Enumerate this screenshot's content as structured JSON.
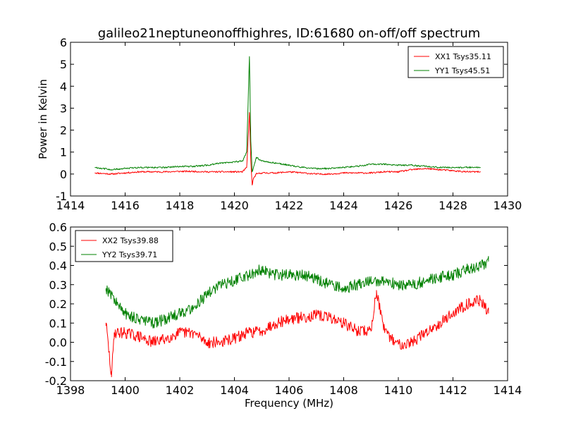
{
  "figure_title": "galileo21neptuneonoffhighres, ID:61680 on-off/off spectrum",
  "chart_data": [
    {
      "type": "line",
      "title": "galileo21neptuneonoffhighres, ID:61680 on-off/off spectrum",
      "xlabel": "",
      "ylabel": "Power in Kelvin",
      "xlim": [
        1414,
        1430
      ],
      "ylim": [
        -1,
        6
      ],
      "xticks": [
        1414,
        1416,
        1418,
        1420,
        1422,
        1424,
        1426,
        1428,
        1430
      ],
      "yticks": [
        -1,
        0,
        1,
        2,
        3,
        4,
        5,
        6
      ],
      "grid": false,
      "legend": "top-right",
      "series": [
        {
          "name": "XX1 Tsys35.11",
          "color": "#ff0000",
          "x": [
            1414.9,
            1415.5,
            1416.0,
            1416.5,
            1417.0,
            1417.5,
            1418.0,
            1418.5,
            1419.0,
            1419.5,
            1420.0,
            1420.3,
            1420.45,
            1420.55,
            1420.6,
            1420.65,
            1420.7,
            1420.8,
            1421.0,
            1421.5,
            1422.0,
            1422.5,
            1423.0,
            1423.5,
            1424.0,
            1424.5,
            1425.0,
            1425.5,
            1426.0,
            1426.5,
            1427.0,
            1427.5,
            1428.0,
            1428.5,
            1429.0
          ],
          "values": [
            0.05,
            0.0,
            0.05,
            0.1,
            0.1,
            0.1,
            0.12,
            0.12,
            0.1,
            0.1,
            0.1,
            0.1,
            0.3,
            2.8,
            0.6,
            -0.5,
            -0.2,
            0.0,
            0.05,
            0.05,
            0.1,
            0.05,
            0.0,
            0.0,
            0.05,
            0.05,
            0.05,
            0.1,
            0.1,
            0.2,
            0.25,
            0.2,
            0.15,
            0.1,
            0.1
          ]
        },
        {
          "name": "YY1 Tsys45.51",
          "color": "#008000",
          "x": [
            1414.9,
            1415.5,
            1416.0,
            1416.5,
            1417.0,
            1417.5,
            1418.0,
            1418.5,
            1419.0,
            1419.5,
            1420.0,
            1420.3,
            1420.45,
            1420.55,
            1420.6,
            1420.65,
            1420.7,
            1420.8,
            1421.0,
            1421.5,
            1422.0,
            1422.5,
            1423.0,
            1423.5,
            1424.0,
            1424.5,
            1425.0,
            1425.5,
            1426.0,
            1426.5,
            1427.0,
            1427.5,
            1428.0,
            1428.5,
            1429.0
          ],
          "values": [
            0.3,
            0.2,
            0.25,
            0.3,
            0.3,
            0.3,
            0.35,
            0.35,
            0.4,
            0.5,
            0.55,
            0.6,
            1.0,
            5.35,
            1.5,
            0.1,
            0.3,
            0.75,
            0.6,
            0.5,
            0.4,
            0.3,
            0.25,
            0.25,
            0.3,
            0.35,
            0.45,
            0.45,
            0.4,
            0.4,
            0.35,
            0.3,
            0.3,
            0.3,
            0.3
          ]
        }
      ]
    },
    {
      "type": "line",
      "title": "",
      "xlabel": "Frequency (MHz)",
      "ylabel": "",
      "xlim": [
        1398,
        1414
      ],
      "ylim": [
        -0.2,
        0.6
      ],
      "xticks": [
        1398,
        1400,
        1402,
        1404,
        1406,
        1408,
        1410,
        1412,
        1414
      ],
      "yticks": [
        -0.2,
        -0.1,
        0.0,
        0.1,
        0.2,
        0.3,
        0.4,
        0.5,
        0.6
      ],
      "grid": false,
      "legend": "top-left",
      "series": [
        {
          "name": "XX2 Tsys39.88",
          "color": "#ff0000",
          "x": [
            1399.3,
            1399.5,
            1399.6,
            1400.0,
            1400.5,
            1401.0,
            1401.5,
            1402.0,
            1402.5,
            1403.0,
            1403.5,
            1404.0,
            1404.5,
            1405.0,
            1405.5,
            1406.0,
            1406.5,
            1407.0,
            1407.5,
            1408.0,
            1408.5,
            1409.0,
            1409.2,
            1409.5,
            1410.0,
            1410.5,
            1411.0,
            1411.5,
            1412.0,
            1412.5,
            1413.0,
            1413.3
          ],
          "values": [
            0.1,
            -0.18,
            0.05,
            0.05,
            0.03,
            0.0,
            0.02,
            0.05,
            0.05,
            0.0,
            0.0,
            0.02,
            0.05,
            0.06,
            0.1,
            0.12,
            0.13,
            0.14,
            0.13,
            0.1,
            0.06,
            0.06,
            0.27,
            0.05,
            -0.01,
            0.0,
            0.05,
            0.1,
            0.15,
            0.2,
            0.22,
            0.15
          ]
        },
        {
          "name": "YY2 Tsys39.71",
          "color": "#008000",
          "x": [
            1399.3,
            1399.5,
            1399.7,
            1400.0,
            1400.5,
            1401.0,
            1401.5,
            1402.0,
            1402.5,
            1403.0,
            1403.5,
            1404.0,
            1404.5,
            1405.0,
            1405.5,
            1406.0,
            1406.5,
            1407.0,
            1407.5,
            1408.0,
            1408.5,
            1409.0,
            1409.5,
            1410.0,
            1410.5,
            1411.0,
            1411.5,
            1412.0,
            1412.5,
            1413.0,
            1413.3
          ],
          "values": [
            0.28,
            0.25,
            0.2,
            0.15,
            0.12,
            0.1,
            0.12,
            0.15,
            0.18,
            0.25,
            0.3,
            0.32,
            0.35,
            0.38,
            0.35,
            0.35,
            0.35,
            0.33,
            0.3,
            0.28,
            0.3,
            0.32,
            0.32,
            0.3,
            0.3,
            0.32,
            0.34,
            0.35,
            0.38,
            0.4,
            0.42
          ]
        }
      ]
    }
  ]
}
